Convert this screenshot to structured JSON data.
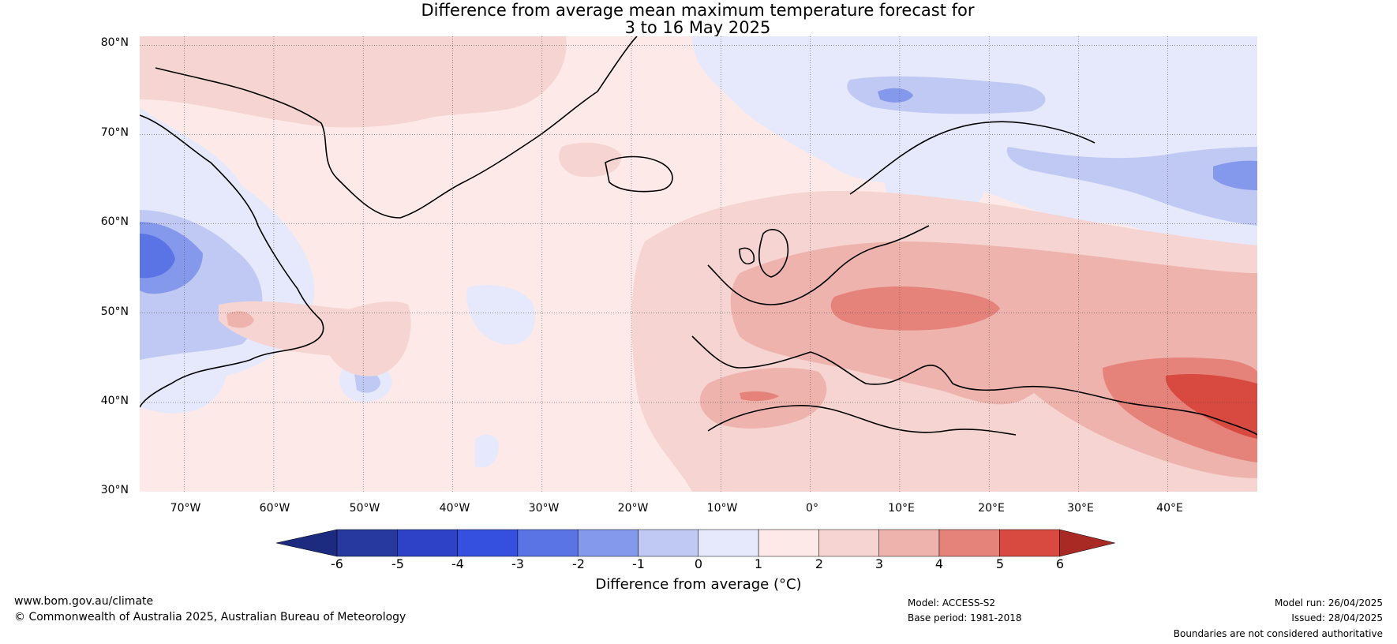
{
  "title": {
    "line1": "Difference from average mean maximum temperature forecast for",
    "line2": "3 to 16 May 2025"
  },
  "map": {
    "lat_labels": [
      "80°N",
      "70°N",
      "60°N",
      "50°N",
      "40°N",
      "30°N"
    ],
    "lat_values": [
      80,
      70,
      60,
      50,
      40,
      30
    ],
    "lon_labels": [
      "70°W",
      "60°W",
      "50°W",
      "40°W",
      "30°W",
      "20°W",
      "10°W",
      "0°",
      "10°E",
      "20°E",
      "30°E",
      "40°E"
    ],
    "lon_values": [
      -70,
      -60,
      -50,
      -40,
      -30,
      -20,
      -10,
      0,
      10,
      20,
      30,
      40
    ],
    "extent": {
      "lon_min": -75,
      "lon_max": 50,
      "lat_min": 30,
      "lat_max": 81
    },
    "ocean_background_color": "#fdeae8",
    "anomaly_regions": [
      {
        "area": "Greenland / Denmark Strait",
        "anomaly_c": 1.5,
        "color": "#f6d4d1"
      },
      {
        "area": "Western and Central Europe",
        "anomaly_c": 2.5,
        "color": "#efb3ae"
      },
      {
        "area": "Italy",
        "anomaly_c": 2.5,
        "color": "#efb3ae"
      },
      {
        "area": "Danube basin / Romania",
        "anomaly_c": 3.5,
        "color": "#e5837b"
      },
      {
        "area": "Eastern Turkey",
        "anomaly_c": 4.5,
        "color": "#d84a40"
      },
      {
        "area": "North Africa",
        "anomaly_c": 2.5,
        "color": "#efb3ae"
      },
      {
        "area": "Canada / Labrador",
        "anomaly_c": -1.5,
        "color": "#c0c9f3"
      },
      {
        "area": "Hudson Bay area",
        "anomaly_c": -3.5,
        "color": "#5a74e6"
      },
      {
        "area": "Scandinavia",
        "anomaly_c": -0.5,
        "color": "#e6e9fb"
      },
      {
        "area": "Barents Sea",
        "anomaly_c": -2.5,
        "color": "#8599ec"
      },
      {
        "area": "NW Russia",
        "anomaly_c": -1.5,
        "color": "#c0c9f3"
      }
    ]
  },
  "colorbar": {
    "ticks": [
      "-6",
      "-5",
      "-4",
      "-3",
      "-2",
      "-1",
      "0",
      "1",
      "2",
      "3",
      "4",
      "5",
      "6"
    ],
    "tick_values": [
      -6,
      -5,
      -4,
      -3,
      -2,
      -1,
      0,
      1,
      2,
      3,
      4,
      5,
      6
    ],
    "colors": [
      "#27389f",
      "#2d42c6",
      "#3550df",
      "#5a74e6",
      "#8599ec",
      "#c0c9f3",
      "#e6e9fb",
      "#fdeae8",
      "#f6d4d1",
      "#efb3ae",
      "#e5837b",
      "#d84a40",
      "#a92a24"
    ],
    "under_color": "#1c2a80",
    "over_color": "#7a1a16",
    "label": "Difference from average (°C)"
  },
  "footer": {
    "website": "www.bom.gov.au/climate",
    "copyright": "© Commonwealth of Australia 2025, Australian Bureau of Meteorology",
    "model": "Model: ACCESS-S2",
    "base_period": "Base period: 1981-2018",
    "model_run": "Model run: 26/04/2025",
    "issued": "Issued: 28/04/2025",
    "disclaimer": "Boundaries are not considered authoritative"
  }
}
